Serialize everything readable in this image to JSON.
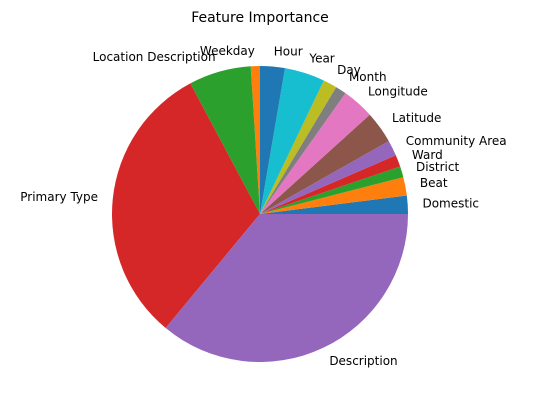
{
  "chart_data": {
    "type": "pie",
    "title": "Feature Importance",
    "start_angle": 0,
    "direction": "counterclockwise",
    "slices": [
      {
        "label": "Domestic",
        "value": 2.0,
        "color": "#1f77b4"
      },
      {
        "label": "Beat",
        "value": 2.0,
        "color": "#ff7f0e"
      },
      {
        "label": "District",
        "value": 1.2,
        "color": "#2ca02c"
      },
      {
        "label": "Ward",
        "value": 1.3,
        "color": "#d62728"
      },
      {
        "label": "Community Area",
        "value": 1.7,
        "color": "#9467bd"
      },
      {
        "label": "Latitude",
        "value": 3.5,
        "color": "#8c564b"
      },
      {
        "label": "Longitude",
        "value": 3.5,
        "color": "#e377c2"
      },
      {
        "label": "Month",
        "value": 1.2,
        "color": "#7f7f7f"
      },
      {
        "label": "Day",
        "value": 1.5,
        "color": "#bcbd22"
      },
      {
        "label": "Year",
        "value": 4.4,
        "color": "#17becf"
      },
      {
        "label": "Hour",
        "value": 2.7,
        "color": "#1f77b4"
      },
      {
        "label": "Weekday",
        "value": 1.0,
        "color": "#ff7f0e"
      },
      {
        "label": "Location Description",
        "value": 6.8,
        "color": "#2ca02c"
      },
      {
        "label": "Primary Type",
        "value": 31.2,
        "color": "#d62728"
      },
      {
        "label": "Description",
        "value": 36.0,
        "color": "#9467bd"
      }
    ]
  }
}
